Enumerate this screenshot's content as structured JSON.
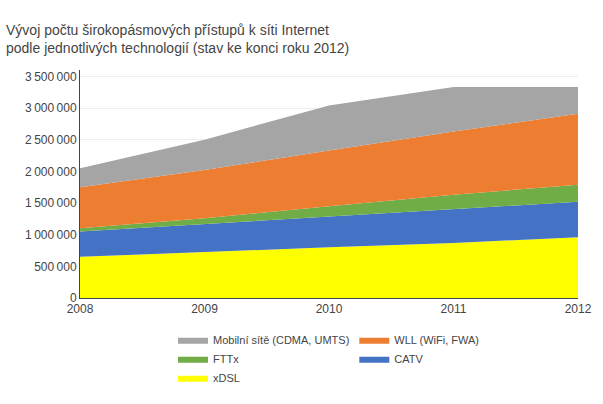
{
  "chart_data": {
    "type": "area",
    "title": "Vývoj počtu širokopásmových přístupů k síti Internet",
    "subtitle": "podle jednotlivých technologií (stav ke konci roku 2012)",
    "x": [
      2008,
      2009,
      2010,
      2011,
      2012
    ],
    "series": [
      {
        "name": "xDSL",
        "color": "#ffff00",
        "values": [
          650000,
          730000,
          800000,
          870000,
          960000
        ]
      },
      {
        "name": "CATV",
        "color": "#4472c4",
        "values": [
          400000,
          440000,
          490000,
          530000,
          560000
        ]
      },
      {
        "name": "FTTx",
        "color": "#70ad47",
        "values": [
          50000,
          90000,
          160000,
          230000,
          270000
        ]
      },
      {
        "name": "WLL (WiFi, FWA)",
        "color": "#ed7d31",
        "values": [
          650000,
          760000,
          880000,
          1000000,
          1120000
        ]
      },
      {
        "name": "Mobilní sítě (CDMA, UMTS)",
        "color": "#a5a5a5",
        "values": [
          300000,
          480000,
          710000,
          700000,
          420000
        ]
      }
    ],
    "stacked": true,
    "xlim": [
      2008,
      2012
    ],
    "xticks": [
      2008,
      2009,
      2010,
      2011,
      2012
    ],
    "ylim": [
      0,
      3600000
    ],
    "yticks": [
      0,
      {
        "value": 500000,
        "label": "500 000"
      },
      {
        "value": 1000000,
        "label": "1 000 000"
      },
      {
        "value": 1500000,
        "label": "1 500 000"
      },
      {
        "value": 2000000,
        "label": "2 000 000"
      },
      {
        "value": 2500000,
        "label": "2 500 000"
      },
      {
        "value": 3000000,
        "label": "3 000 000"
      },
      {
        "value": 3500000,
        "label": "3 500 000"
      }
    ],
    "grid": "y",
    "legend": "bottom"
  }
}
